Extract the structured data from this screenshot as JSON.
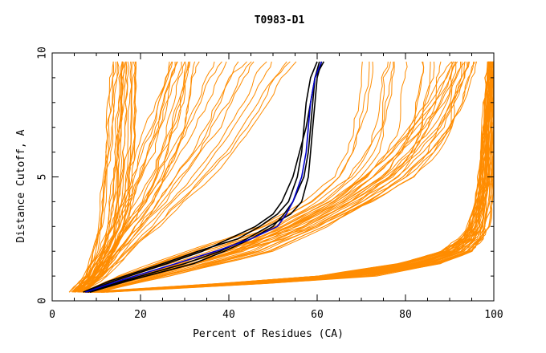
{
  "chart_data": {
    "type": "line",
    "title": "T0983-D1",
    "xlabel": "Percent of Residues (CA)",
    "ylabel": "Distance Cutoff, A",
    "xlim": [
      0,
      100
    ],
    "ylim": [
      0,
      10
    ],
    "x_ticks": [
      0,
      20,
      40,
      60,
      80,
      100
    ],
    "y_ticks": [
      0,
      5,
      10
    ],
    "grid": false,
    "legend": "none",
    "colors": {
      "orange": "#FF8C00",
      "black": "#000000",
      "blue": "#0000CC"
    },
    "series_groups": {
      "orange_families": [
        {
          "count": 20,
          "y": [
            0.35,
            1,
            2,
            3,
            4,
            5,
            6,
            7,
            8,
            9,
            9.65
          ],
          "x_lo": [
            5,
            7.5,
            9.5,
            10.5,
            11,
            11.5,
            12,
            12.5,
            13,
            13.5,
            14
          ],
          "x_hi": [
            7,
            11,
            14,
            16.5,
            17.5,
            18,
            18.5,
            18.5,
            18.5,
            18.5,
            18.5
          ]
        },
        {
          "count": 14,
          "y": [
            0.35,
            1,
            2,
            3,
            4,
            5,
            6,
            7,
            8,
            9,
            9.65
          ],
          "x_lo": [
            4,
            8,
            11,
            13,
            15,
            17,
            19,
            21,
            23,
            25,
            26
          ],
          "x_hi": [
            6,
            11,
            15,
            19,
            23,
            26,
            28,
            30,
            31,
            32,
            33
          ]
        },
        {
          "count": 12,
          "y": [
            0.35,
            1,
            2,
            3,
            4,
            5,
            6,
            7,
            8,
            9,
            9.65
          ],
          "x_lo": [
            5,
            9,
            13,
            17,
            21,
            24,
            27,
            30,
            33,
            35,
            37
          ],
          "x_hi": [
            7,
            12,
            18,
            24,
            30,
            36,
            41,
            45,
            49,
            52,
            55
          ]
        },
        {
          "count": 16,
          "y": [
            0.35,
            1,
            2,
            2.5,
            3,
            4,
            5,
            6,
            7,
            8,
            9,
            9.65
          ],
          "x_lo": [
            7,
            15,
            30,
            39,
            47,
            57,
            63,
            66,
            68,
            69,
            69.5,
            70
          ],
          "x_hi": [
            8,
            22,
            42,
            52,
            60,
            72,
            82,
            87,
            90,
            91.5,
            92.5,
            93
          ]
        },
        {
          "count": 14,
          "y": [
            0.35,
            1,
            2,
            3,
            4,
            5,
            6,
            7,
            8,
            9,
            9.65
          ],
          "x_lo": [
            8,
            20,
            40,
            52,
            62,
            70,
            76,
            81,
            85,
            88,
            90
          ],
          "x_hi": [
            10,
            26,
            50,
            62,
            72,
            80,
            86,
            90,
            93,
            95,
            96
          ]
        },
        {
          "count": 42,
          "y": [
            0.35,
            0.7,
            1,
            1.5,
            2,
            2.5,
            3,
            4,
            5,
            6,
            7,
            8,
            9,
            9.65
          ],
          "x_lo": [
            7,
            38,
            60,
            78,
            88,
            92,
            94,
            95.5,
            96.5,
            97,
            97.5,
            98,
            98,
            98.5
          ],
          "x_hi": [
            12,
            48,
            73,
            88,
            95,
            97.5,
            98.5,
            99.2,
            99.5,
            99.6,
            99.7,
            99.8,
            99.8,
            99.8
          ]
        }
      ],
      "black_curves": [
        {
          "y": [
            0.35,
            0.8,
            1.5,
            2,
            2.5,
            3,
            3.5,
            4,
            5,
            6,
            7,
            8,
            9,
            9.65
          ],
          "x": [
            7,
            13,
            25,
            33,
            42,
            47,
            51,
            53.5,
            55.5,
            56.5,
            57,
            57.5,
            58.5,
            60
          ]
        },
        {
          "y": [
            0.35,
            0.8,
            1.5,
            2,
            2.5,
            3,
            3.5,
            4,
            5,
            6,
            7,
            8,
            9,
            9.65
          ],
          "x": [
            8,
            16,
            30,
            38,
            44,
            49,
            54,
            56.5,
            58,
            58.5,
            59,
            59.5,
            60,
            61
          ]
        },
        {
          "y": [
            0.35,
            0.8,
            1.5,
            2,
            2.5,
            3,
            3.5,
            4,
            5,
            6,
            7,
            8,
            9,
            9.65
          ],
          "x": [
            7.5,
            14,
            26,
            34,
            40,
            46,
            50,
            52,
            54.5,
            56,
            57.5,
            58.5,
            59.5,
            61.5
          ]
        },
        {
          "y": [
            0.35,
            0.8,
            1.5,
            2,
            2.5,
            3,
            3.5,
            4,
            5,
            6,
            7,
            8,
            9,
            9.65
          ],
          "x": [
            8.5,
            17,
            32,
            39,
            45,
            50,
            52.5,
            54.5,
            57,
            58,
            58.5,
            59,
            59.5,
            60.5
          ]
        }
      ],
      "blue_curves": [
        {
          "y": [
            0.35,
            0.8,
            1.5,
            2,
            2.5,
            3,
            3.5,
            4,
            5,
            6,
            7,
            8,
            9,
            9.65
          ],
          "x": [
            7.5,
            15,
            28,
            37,
            45,
            51,
            53,
            54.5,
            56.5,
            57.5,
            58,
            58.5,
            59.5,
            61
          ]
        }
      ]
    }
  }
}
